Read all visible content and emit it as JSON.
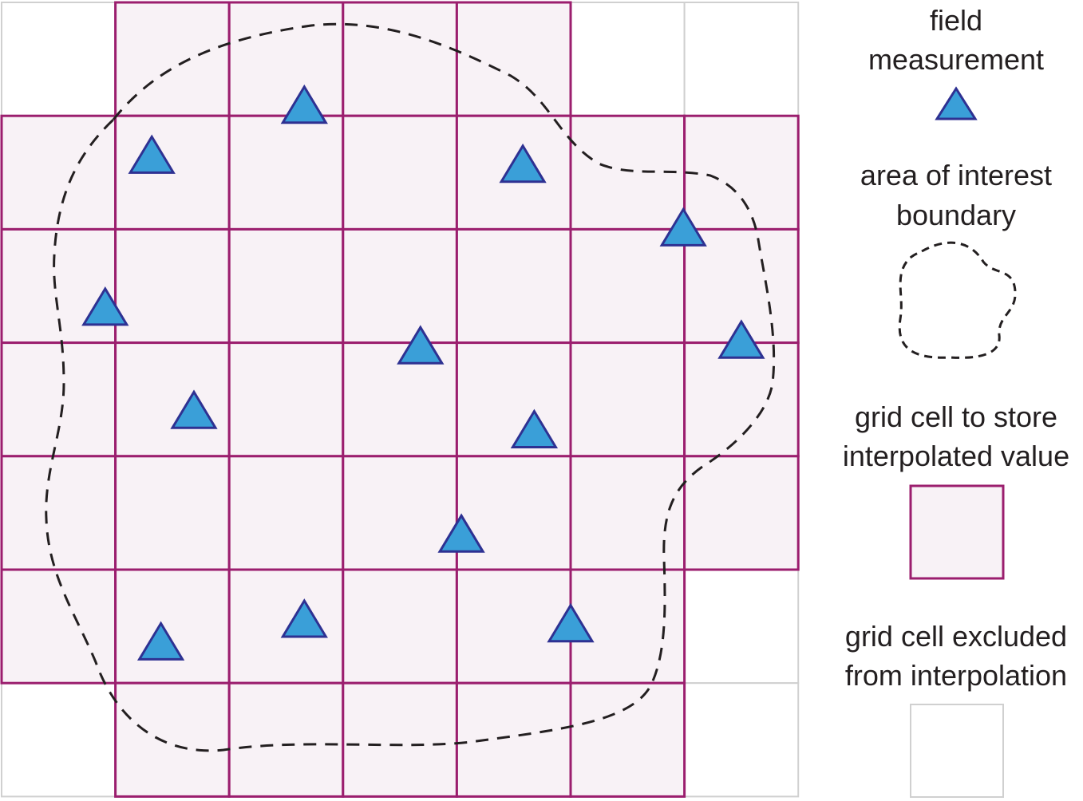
{
  "colors": {
    "included_cell_fill": "#f8f2f6",
    "included_cell_stroke": "#9b1e6e",
    "excluded_cell_stroke": "#d0d0d0",
    "triangle_fill": "#3a9fd8",
    "triangle_stroke": "#2e3192",
    "boundary_stroke": "#231f20"
  },
  "grid": {
    "columns": 7,
    "rows": 7,
    "included_cells": [
      [
        1,
        0
      ],
      [
        2,
        0
      ],
      [
        3,
        0
      ],
      [
        4,
        0
      ],
      [
        0,
        1
      ],
      [
        1,
        1
      ],
      [
        2,
        1
      ],
      [
        3,
        1
      ],
      [
        4,
        1
      ],
      [
        5,
        1
      ],
      [
        6,
        1
      ],
      [
        0,
        2
      ],
      [
        1,
        2
      ],
      [
        2,
        2
      ],
      [
        3,
        2
      ],
      [
        4,
        2
      ],
      [
        5,
        2
      ],
      [
        6,
        2
      ],
      [
        0,
        3
      ],
      [
        1,
        3
      ],
      [
        2,
        3
      ],
      [
        3,
        3
      ],
      [
        4,
        3
      ],
      [
        5,
        3
      ],
      [
        6,
        3
      ],
      [
        0,
        4
      ],
      [
        1,
        4
      ],
      [
        2,
        4
      ],
      [
        3,
        4
      ],
      [
        4,
        4
      ],
      [
        5,
        4
      ],
      [
        6,
        4
      ],
      [
        0,
        5
      ],
      [
        1,
        5
      ],
      [
        2,
        5
      ],
      [
        3,
        5
      ],
      [
        4,
        5
      ],
      [
        5,
        5
      ],
      [
        1,
        6
      ],
      [
        2,
        6
      ],
      [
        3,
        6
      ],
      [
        4,
        6
      ],
      [
        5,
        6
      ]
    ]
  },
  "field_measurements": [
    [
      2.66,
      0.92
    ],
    [
      1.32,
      1.36
    ],
    [
      4.58,
      1.44
    ],
    [
      5.99,
      2.0
    ],
    [
      0.91,
      2.7
    ],
    [
      3.68,
      3.04
    ],
    [
      6.5,
      2.99
    ],
    [
      1.69,
      3.61
    ],
    [
      4.68,
      3.78
    ],
    [
      4.04,
      4.7
    ],
    [
      2.66,
      5.45
    ],
    [
      1.4,
      5.65
    ],
    [
      5.0,
      5.49
    ]
  ],
  "legend": {
    "field_measurement": {
      "line1": "field",
      "line2": "measurement",
      "icon": "triangle-icon"
    },
    "boundary": {
      "line1": "area of interest",
      "line2": "boundary",
      "icon": "dashed-blob-icon"
    },
    "included_cell": {
      "line1": "grid cell to store",
      "line2": "interpolated value"
    },
    "excluded_cell": {
      "line1": "grid cell excluded",
      "line2": "from interpolation"
    }
  }
}
